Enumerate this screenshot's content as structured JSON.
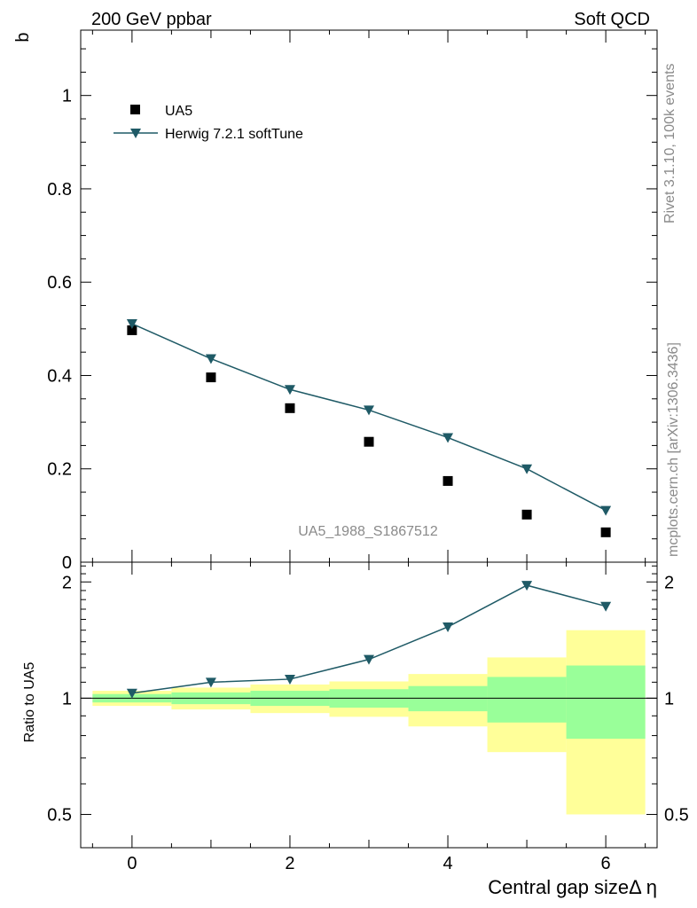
{
  "header": {
    "left_title": "200 GeV ppbar",
    "right_title": "Soft QCD"
  },
  "side_labels": {
    "rivet": "Rivet 3.1.10,  100k events",
    "mcplots": "mcplots.cern.ch [arXiv:1306.3436]"
  },
  "watermark": "UA5_1988_S1867512",
  "colors": {
    "mc_line": "#1f5a66",
    "band_inner": "#99ff99",
    "band_outer": "#ffff99",
    "data_marker": "#000000"
  },
  "chart_data": [
    {
      "type": "scatter",
      "panel": "main",
      "ylabel": "b",
      "xlim": [
        -0.65,
        6.65
      ],
      "ylim": [
        0,
        1.14
      ],
      "y_ticks": [
        0,
        0.2,
        0.4,
        0.6,
        0.8,
        1
      ],
      "y_tick_labels": [
        "0",
        "0.2",
        "0.4",
        "0.6",
        "0.8",
        "1"
      ],
      "legend_placement": "top-left",
      "series": [
        {
          "name": "UA5",
          "marker": "square",
          "x": [
            0,
            1,
            2,
            3,
            4,
            5,
            6
          ],
          "y": [
            0.497,
            0.396,
            0.33,
            0.258,
            0.174,
            0.102,
            0.064
          ]
        },
        {
          "name": "Herwig 7.2.1 softTune",
          "marker": "triangle-down",
          "x": [
            0,
            1,
            2,
            3,
            4,
            5,
            6
          ],
          "y": [
            0.511,
            0.436,
            0.37,
            0.326,
            0.267,
            0.2,
            0.111
          ]
        }
      ]
    },
    {
      "type": "line",
      "panel": "ratio",
      "ylabel": "Ratio to UA5",
      "xlabel": "Central gap sizeΔ η",
      "xlim": [
        -0.65,
        6.65
      ],
      "ylim": [
        0.41,
        2.25
      ],
      "x_ticks": [
        0,
        2,
        4,
        6
      ],
      "x_tick_labels": [
        "0",
        "2",
        "4",
        "6"
      ],
      "y_ticks": [
        0.5,
        1,
        2
      ],
      "y_tick_labels": [
        "0.5",
        "1",
        "2"
      ],
      "log_y": true,
      "reference": 1,
      "bands": {
        "bin_edges": [
          -0.5,
          0.5,
          1.5,
          2.5,
          3.5,
          4.5,
          5.5,
          6.5
        ],
        "inner": [
          [
            0.975,
            1.025
          ],
          [
            0.965,
            1.035
          ],
          [
            0.955,
            1.045
          ],
          [
            0.945,
            1.055
          ],
          [
            0.925,
            1.075
          ],
          [
            0.865,
            1.135
          ],
          [
            0.785,
            1.215
          ]
        ],
        "outer": [
          [
            0.955,
            1.045
          ],
          [
            0.935,
            1.065
          ],
          [
            0.915,
            1.085
          ],
          [
            0.895,
            1.105
          ],
          [
            0.845,
            1.155
          ],
          [
            0.725,
            1.275
          ],
          [
            0.5,
            1.5
          ]
        ]
      },
      "series": [
        {
          "name": "Herwig 7.2.1 softTune",
          "x": [
            0,
            1,
            2,
            3,
            4,
            5,
            6
          ],
          "y": [
            1.03,
            1.1,
            1.12,
            1.26,
            1.53,
            1.96,
            1.73
          ]
        }
      ]
    }
  ]
}
